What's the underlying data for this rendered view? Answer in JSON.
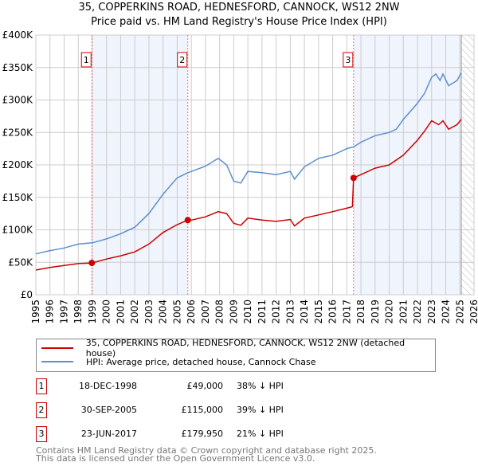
{
  "chart_data": {
    "type": "line",
    "title": "35, COPPERKINS ROAD, HEDNESFORD, CANNOCK, WS12 2NW",
    "subtitle": "Price paid vs. HM Land Registry's House Price Index (HPI)",
    "xlim": [
      1995,
      2026
    ],
    "ylim": [
      0,
      400000
    ],
    "y_ticks": [
      {
        "v": 0,
        "label": "£0"
      },
      {
        "v": 50000,
        "label": "£50K"
      },
      {
        "v": 100000,
        "label": "£100K"
      },
      {
        "v": 150000,
        "label": "£150K"
      },
      {
        "v": 200000,
        "label": "£200K"
      },
      {
        "v": 250000,
        "label": "£250K"
      },
      {
        "v": 300000,
        "label": "£300K"
      },
      {
        "v": 350000,
        "label": "£350K"
      },
      {
        "v": 400000,
        "label": "£400K"
      }
    ],
    "x_ticks": [
      "1995",
      "1996",
      "1997",
      "1998",
      "1999",
      "2000",
      "2001",
      "2002",
      "2003",
      "2004",
      "2005",
      "2006",
      "2007",
      "2008",
      "2009",
      "2010",
      "2011",
      "2012",
      "2013",
      "2014",
      "2015",
      "2016",
      "2017",
      "2018",
      "2019",
      "2020",
      "2021",
      "2022",
      "2023",
      "2024",
      "2025",
      "2026"
    ],
    "grid": true,
    "shaded_ranges": [
      [
        1998.96,
        2005.75
      ],
      [
        2017.48,
        2025.1
      ]
    ],
    "hatched_after": 2025.1,
    "series": [
      {
        "name": "35, COPPERKINS ROAD, HEDNESFORD, CANNOCK, WS12 2NW (detached house)",
        "color": "#cc0000",
        "x": [
          1995,
          1996,
          1997,
          1998,
          1998.96,
          2000,
          2001,
          2002,
          2003,
          2004,
          2005,
          2005.75,
          2006,
          2007,
          2007.9,
          2008.5,
          2009,
          2009.5,
          2010,
          2011,
          2012,
          2013,
          2013.3,
          2014,
          2015,
          2016,
          2017.3,
          2017.4,
          2017.48,
          2018,
          2019,
          2020,
          2021,
          2022,
          2022.5,
          2023,
          2023.5,
          2023.8,
          2024.2,
          2024.8,
          2025.1
        ],
        "y": [
          38000,
          42000,
          45000,
          48000,
          49000,
          55000,
          60000,
          66000,
          78000,
          96000,
          108000,
          115000,
          115000,
          120000,
          128000,
          125000,
          110000,
          107000,
          118000,
          115000,
          113000,
          116000,
          106000,
          118000,
          123000,
          128000,
          135000,
          136000,
          179950,
          185000,
          195000,
          200000,
          215000,
          238000,
          252000,
          268000,
          262000,
          268000,
          255000,
          262000,
          270000
        ]
      },
      {
        "name": "HPI: Average price, detached house, Cannock Chase",
        "color": "#5b8fd0",
        "x": [
          1995,
          1996,
          1997,
          1998,
          1999,
          2000,
          2001,
          2002,
          2003,
          2004,
          2005,
          2005.75,
          2006,
          2007,
          2007.9,
          2008.5,
          2009,
          2009.5,
          2010,
          2011,
          2012,
          2013,
          2013.3,
          2014,
          2015,
          2016,
          2017,
          2017.5,
          2018,
          2019,
          2020,
          2020.5,
          2021,
          2022,
          2022.5,
          2023,
          2023.3,
          2023.6,
          2023.8,
          2024.2,
          2024.8,
          2025.1
        ],
        "y": [
          63000,
          68000,
          72000,
          78000,
          80000,
          86000,
          94000,
          104000,
          125000,
          155000,
          180000,
          188000,
          190000,
          198000,
          210000,
          200000,
          175000,
          172000,
          190000,
          188000,
          185000,
          190000,
          178000,
          197000,
          210000,
          215000,
          225000,
          228000,
          235000,
          245000,
          250000,
          255000,
          270000,
          295000,
          310000,
          335000,
          340000,
          330000,
          340000,
          322000,
          330000,
          342000
        ]
      }
    ],
    "sales": [
      {
        "n": "1",
        "x": 1998.96,
        "y": 49000
      },
      {
        "n": "2",
        "x": 2005.75,
        "y": 115000
      },
      {
        "n": "3",
        "x": 2017.48,
        "y": 179950
      }
    ]
  },
  "legend": {
    "red": "35, COPPERKINS ROAD, HEDNESFORD, CANNOCK, WS12 2NW (detached house)",
    "blue": "HPI: Average price, detached house, Cannock Chase"
  },
  "table": [
    {
      "n": "1",
      "date": "18-DEC-1998",
      "price": "£49,000",
      "hpi": "38% ↓ HPI"
    },
    {
      "n": "2",
      "date": "30-SEP-2005",
      "price": "£115,000",
      "hpi": "39% ↓ HPI"
    },
    {
      "n": "3",
      "date": "23-JUN-2017",
      "price": "£179,950",
      "hpi": "21% ↓ HPI"
    }
  ],
  "footer": {
    "line1": "Contains HM Land Registry data © Crown copyright and database right 2025.",
    "line2": "This data is licensed under the Open Government Licence v3.0."
  }
}
